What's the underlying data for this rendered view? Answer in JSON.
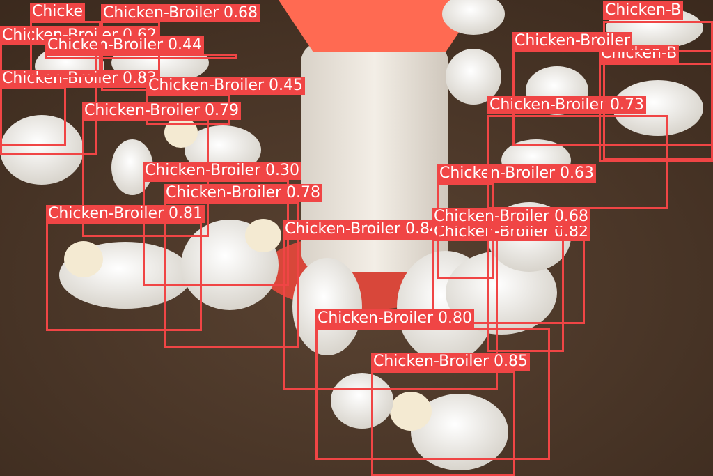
{
  "detections": [
    {
      "label": "Chicken-Broiler",
      "score": "0.68"
    },
    {
      "label": "Chicken-Broiler",
      "score": "0.62"
    },
    {
      "label": "Chicken-Broiler",
      "score": "0.44"
    },
    {
      "label": "Chicken-Broiler",
      "score": "0.83"
    },
    {
      "label": "Chicken-Broiler",
      "score": "0.45"
    },
    {
      "label": "Chicken-Broiler",
      "score": "0.79"
    },
    {
      "label": "Chicken-Broiler",
      "score": "0.30"
    },
    {
      "label": "Chicken-Broiler",
      "score": "0.78"
    },
    {
      "label": "Chicken-Broiler",
      "score": "0.81"
    },
    {
      "label": "Chicken-Broiler",
      "score": "0.84"
    },
    {
      "label": "Chicken-Broiler",
      "score": "0.82"
    },
    {
      "label": "Chicken-Broiler",
      "score": "0.80"
    },
    {
      "label": "Chicken-Broiler",
      "score": "0.85"
    },
    {
      "label": "Chicken-Broiler",
      "score": "0.63"
    },
    {
      "label": "Chicken-Broiler",
      "score": "0.68"
    },
    {
      "label": "Chicken-Broiler",
      "score": "0.73"
    },
    {
      "label": "Chicken-B",
      "score": ""
    },
    {
      "label": "Chicken-B",
      "score": ""
    },
    {
      "label": "Chicken-Broiler",
      "score": ""
    },
    {
      "label": "Chicke",
      "score": ""
    }
  ],
  "colors": {
    "box": "#f04545",
    "label_text": "#ffffff"
  }
}
